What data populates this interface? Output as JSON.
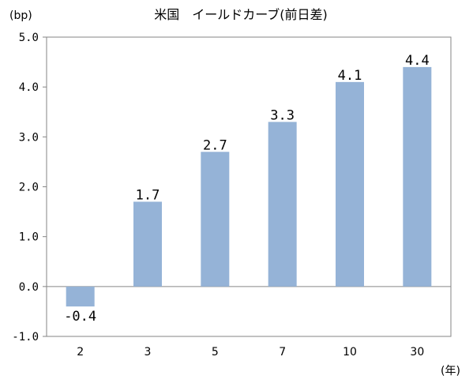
{
  "chart_data": {
    "type": "bar",
    "title": "米国　イールドカーブ(前日差)",
    "ylabel": "(bp)",
    "xlabel": "(年)",
    "categories": [
      "2",
      "3",
      "5",
      "7",
      "10",
      "30"
    ],
    "values": [
      -0.4,
      1.7,
      2.7,
      3.3,
      4.1,
      4.4
    ],
    "value_labels": [
      "-0.4",
      "1.7",
      "2.7",
      "3.3",
      "4.1",
      "4.4"
    ],
    "ylim": [
      -1.0,
      5.0
    ],
    "yticks": [
      "5.0",
      "4.0",
      "3.0",
      "2.0",
      "1.0",
      "0.0",
      "-1.0"
    ],
    "ytick_values": [
      5,
      4,
      3,
      2,
      1,
      0,
      -1
    ],
    "grid": false,
    "legend": "none",
    "bar_color": "#95b3d7"
  }
}
